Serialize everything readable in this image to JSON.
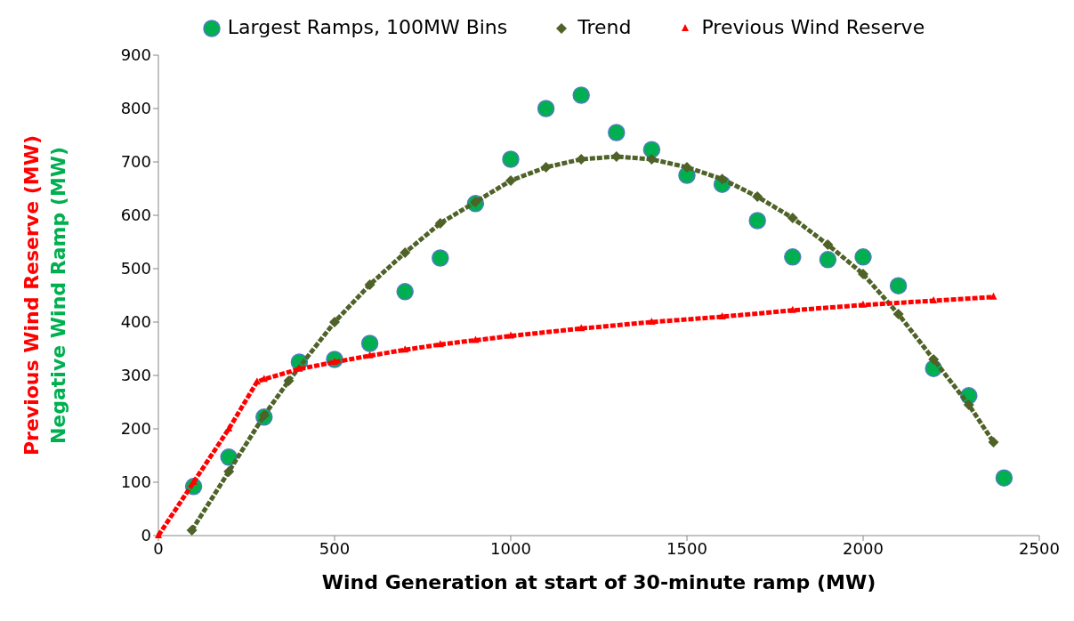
{
  "chart_data": {
    "type": "scatter",
    "xlabel": "Wind Generation at start of 30-minute ramp (MW)",
    "ylabel": [
      "Previous Wind Reserve (MW)",
      "Negative Wind Ramp (MW)"
    ],
    "xlim": [
      0,
      2500
    ],
    "xticks": [
      0,
      500,
      1000,
      1500,
      2000,
      2500
    ],
    "ylim": [
      0,
      900
    ],
    "yticks": [
      0,
      100,
      200,
      300,
      400,
      500,
      600,
      700,
      800,
      900
    ],
    "grid": false,
    "legend": "top",
    "series": [
      {
        "name": "Largest Ramps, 100MW Bins",
        "color": "#00b050",
        "marker": "circle",
        "x": [
          100,
          200,
          300,
          400,
          500,
          600,
          700,
          800,
          900,
          1000,
          1100,
          1200,
          1300,
          1400,
          1500,
          1600,
          1700,
          1800,
          1900,
          2000,
          2100,
          2200,
          2300,
          2400
        ],
        "values": [
          92,
          147,
          222,
          325,
          330,
          360,
          457,
          520,
          622,
          705,
          800,
          825,
          755,
          723,
          675,
          658,
          590,
          522,
          517,
          522,
          468,
          313,
          262,
          108
        ]
      },
      {
        "name": "Trend",
        "type": "line",
        "color": "#4f6228",
        "marker": "diamond",
        "line_style": "dotted",
        "x": [
          95,
          200,
          300,
          370,
          500,
          600,
          700,
          800,
          900,
          1000,
          1100,
          1200,
          1300,
          1400,
          1500,
          1600,
          1700,
          1800,
          1900,
          2000,
          2100,
          2200,
          2300,
          2370
        ],
        "values": [
          10,
          120,
          225,
          290,
          400,
          470,
          530,
          585,
          625,
          665,
          690,
          705,
          710,
          705,
          690,
          668,
          635,
          595,
          545,
          490,
          415,
          330,
          245,
          175
        ]
      },
      {
        "name": "Previous Wind Reserve",
        "type": "line",
        "color": "#ff0000",
        "marker": "triangle",
        "line_style": "dotted",
        "x": [
          0,
          100,
          200,
          280,
          300,
          400,
          500,
          600,
          700,
          800,
          900,
          1000,
          1200,
          1400,
          1600,
          1800,
          2000,
          2200,
          2370
        ],
        "values": [
          0,
          100,
          200,
          288,
          293,
          312,
          325,
          337,
          348,
          358,
          366,
          374,
          388,
          400,
          410,
          422,
          432,
          440,
          447
        ]
      }
    ]
  }
}
